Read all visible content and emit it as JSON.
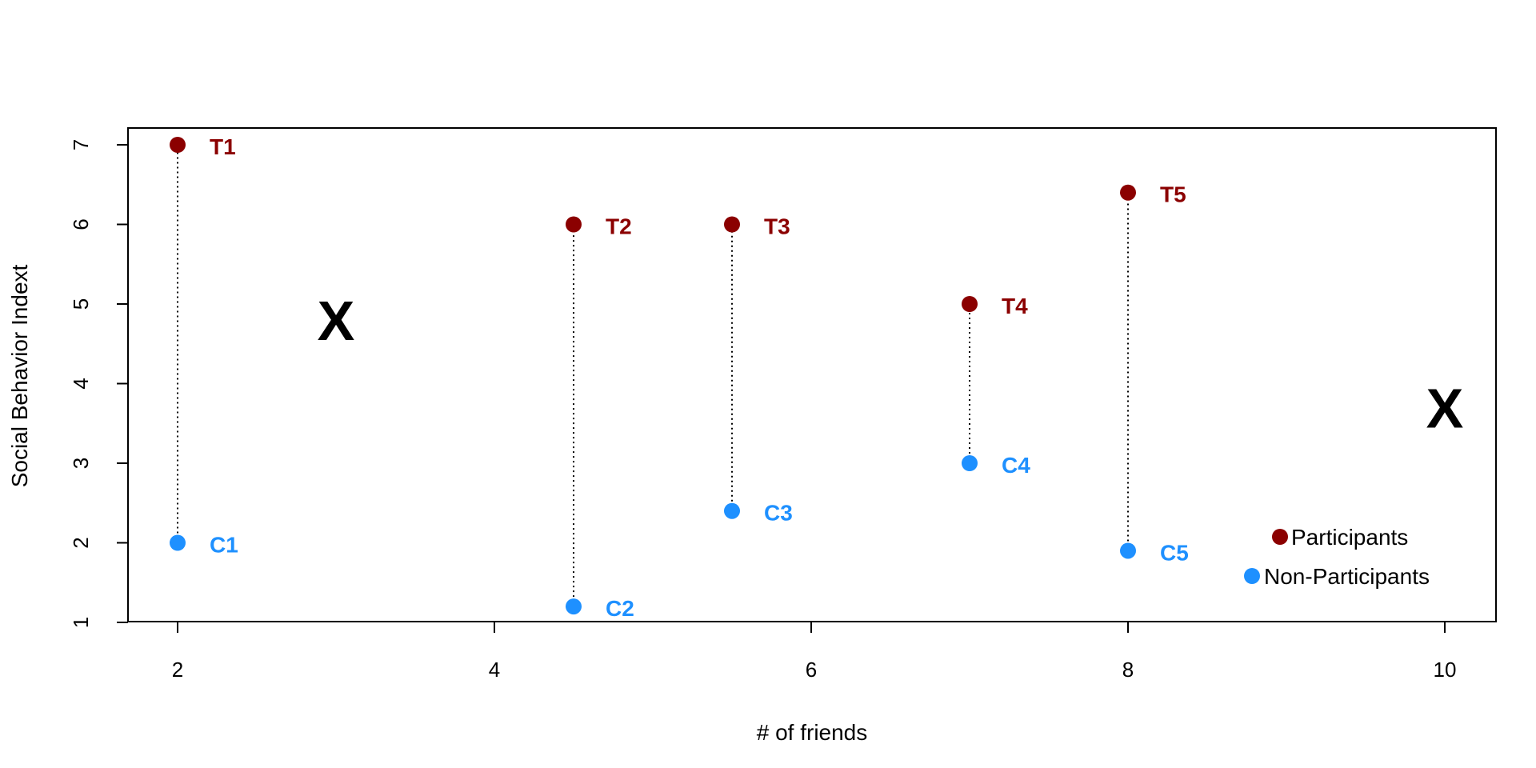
{
  "chart_data": {
    "type": "scatter",
    "title": "",
    "xlabel": "# of friends",
    "ylabel": "Social Behavior Indext",
    "xlim": [
      1.7,
      10.3
    ],
    "ylim": [
      1,
      7.2
    ],
    "x_ticks": [
      2,
      4,
      6,
      8,
      10
    ],
    "y_ticks": [
      1,
      2,
      3,
      4,
      5,
      6,
      7
    ],
    "grid": false,
    "legend_placement": "bottom-right",
    "colors": {
      "participants": "#8B0000",
      "non_participants": "#1E90FF",
      "marker": "#000000"
    },
    "series": [
      {
        "name": "Participants",
        "points": [
          {
            "label": "T1",
            "x": 2,
            "y": 7
          },
          {
            "label": "T2",
            "x": 4.5,
            "y": 6
          },
          {
            "label": "T3",
            "x": 5.5,
            "y": 6
          },
          {
            "label": "T4",
            "x": 7,
            "y": 5
          },
          {
            "label": "T5",
            "x": 8,
            "y": 6.4
          }
        ]
      },
      {
        "name": "Non-Participants",
        "points": [
          {
            "label": "C1",
            "x": 2,
            "y": 2
          },
          {
            "label": "C2",
            "x": 4.5,
            "y": 1.2
          },
          {
            "label": "C3",
            "x": 5.5,
            "y": 2.4
          },
          {
            "label": "C4",
            "x": 7,
            "y": 3
          },
          {
            "label": "C5",
            "x": 8,
            "y": 1.9
          }
        ]
      }
    ],
    "connectors": [
      {
        "x": 2,
        "y1": 2,
        "y2": 7
      },
      {
        "x": 4.5,
        "y1": 1.2,
        "y2": 6
      },
      {
        "x": 5.5,
        "y1": 2.4,
        "y2": 6
      },
      {
        "x": 7,
        "y1": 3,
        "y2": 5
      },
      {
        "x": 8,
        "y1": 1.9,
        "y2": 6.4
      }
    ],
    "markers": [
      {
        "label": "X",
        "x": 3,
        "y": 4.8
      },
      {
        "label": "X",
        "x": 10,
        "y": 3.7
      }
    ],
    "legend": [
      "Participants",
      "Non-Participants"
    ]
  }
}
